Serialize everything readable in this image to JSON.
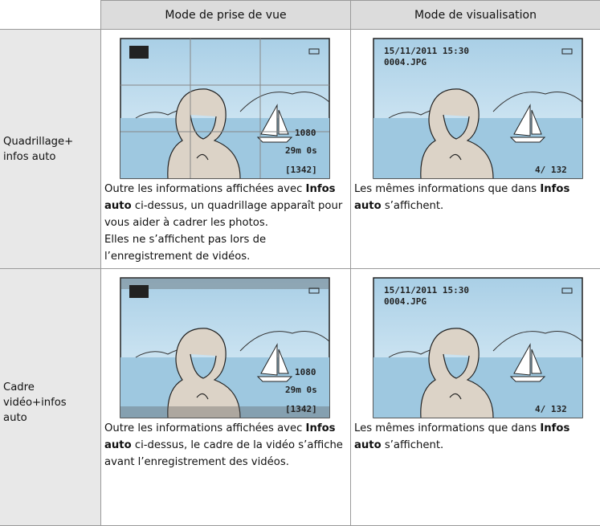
{
  "header": {
    "shooting": "Mode de prise de vue",
    "playback": "Mode de visualisation"
  },
  "rows": [
    {
      "label": [
        "Quadrillage+",
        "infos auto"
      ],
      "shooting": {
        "screen": {
          "movie": "1080",
          "time_left": "29m 0s",
          "shots": "[1342]"
        },
        "text": [
          {
            "before": "Outre les informations affichées avec ",
            "bold": "Infos auto",
            "after": " ci-dessus, un quadrillage apparaît pour vous aider à cadrer les photos."
          },
          {
            "before": "Elles ne s’affichent pas lors de l’enregistrement de vidéos."
          }
        ]
      },
      "playback": {
        "screen": {
          "date": "15/11/2011 15:30",
          "file": "0004.JPG",
          "frame": "4/ 132"
        },
        "text": [
          {
            "before": "Les mêmes informations que dans ",
            "bold": "Infos auto",
            "after": " s’affichent."
          }
        ]
      }
    },
    {
      "label": [
        "Cadre",
        "vidéo+infos",
        "auto"
      ],
      "shooting": {
        "screen": {
          "movie": "1080",
          "time_left": "29m 0s",
          "shots": "[1342]"
        },
        "text": [
          {
            "before": "Outre les informations affichées avec ",
            "bold": "Infos auto",
            "after": " ci-dessus, le cadre de la vidéo s’affiche avant l’enregistrement des vidéos."
          }
        ]
      },
      "playback": {
        "screen": {
          "date": "15/11/2011 15:30",
          "file": "0004.JPG",
          "frame": "4/ 132"
        },
        "text": [
          {
            "before": "Les mêmes informations que dans ",
            "bold": "Infos auto",
            "after": " s’affichent."
          }
        ]
      }
    }
  ]
}
